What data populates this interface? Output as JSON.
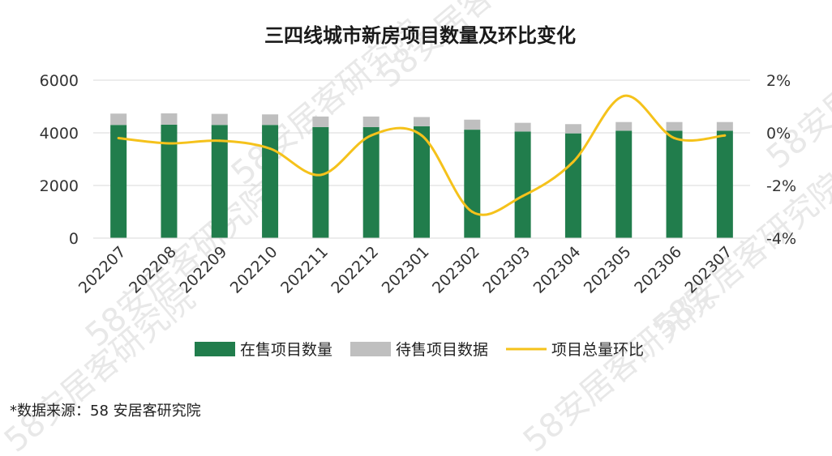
{
  "watermark": "58安居客研究院",
  "source_note": "*数据来源：58 安居客研究院",
  "chart_data": {
    "type": "bar",
    "title": "三四线城市新房项目数量及环比变化",
    "categories": [
      "202207",
      "202208",
      "202209",
      "202210",
      "202211",
      "202212",
      "202301",
      "202302",
      "202303",
      "202304",
      "202305",
      "202306",
      "202307"
    ],
    "series": [
      {
        "name": "在售项目数量",
        "type": "bar",
        "axis": "left",
        "stacked": true,
        "color": "#217d4c",
        "values": [
          4300,
          4310,
          4300,
          4300,
          4220,
          4220,
          4250,
          4120,
          4050,
          3980,
          4080,
          4080,
          4080
        ]
      },
      {
        "name": "待售项目数据",
        "type": "bar",
        "axis": "left",
        "stacked": true,
        "color": "#bfbfbf",
        "values": [
          430,
          430,
          420,
          400,
          400,
          400,
          350,
          380,
          330,
          350,
          330,
          330,
          330
        ]
      },
      {
        "name": "项目总量环比",
        "type": "line",
        "axis": "right",
        "unit": "%",
        "color": "#f5c21b",
        "values": [
          -0.2,
          -0.4,
          -0.3,
          -0.6,
          -1.6,
          -0.1,
          -0.1,
          -3.0,
          -2.4,
          -1.1,
          1.4,
          -0.2,
          -0.1
        ]
      }
    ],
    "yaxis_left": {
      "min": 0,
      "max": 6000,
      "ticks": [
        "0",
        "2000",
        "4000",
        "6000"
      ]
    },
    "yaxis_right": {
      "min": -4,
      "max": 2,
      "ticks": [
        "-4%",
        "-2%",
        "0%",
        "2%"
      ]
    },
    "grid": true,
    "legend_position": "bottom"
  }
}
